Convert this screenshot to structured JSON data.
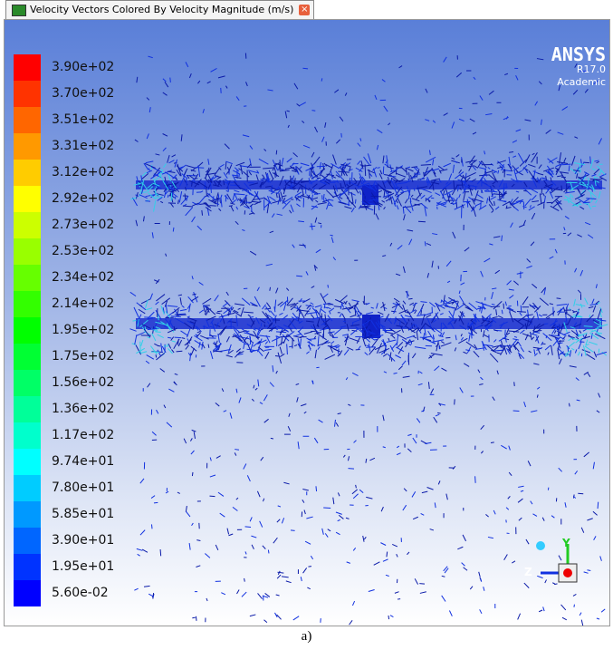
{
  "tab": {
    "title": "Velocity Vectors Colored By Velocity Magnitude (m/s)"
  },
  "colorbar": {
    "labels": [
      "3.90e+02",
      "3.70e+02",
      "3.51e+02",
      "3.31e+02",
      "3.12e+02",
      "2.92e+02",
      "2.73e+02",
      "2.53e+02",
      "2.34e+02",
      "2.14e+02",
      "1.95e+02",
      "1.75e+02",
      "1.56e+02",
      "1.36e+02",
      "1.17e+02",
      "9.74e+01",
      "7.80e+01",
      "5.85e+01",
      "3.90e+01",
      "1.95e+01",
      "5.60e-02"
    ]
  },
  "logo": {
    "name": "ANSYS",
    "version": "R17.0",
    "license": "Academic"
  },
  "triad": {
    "y": "Y",
    "z": "Z"
  },
  "caption": "a)"
}
